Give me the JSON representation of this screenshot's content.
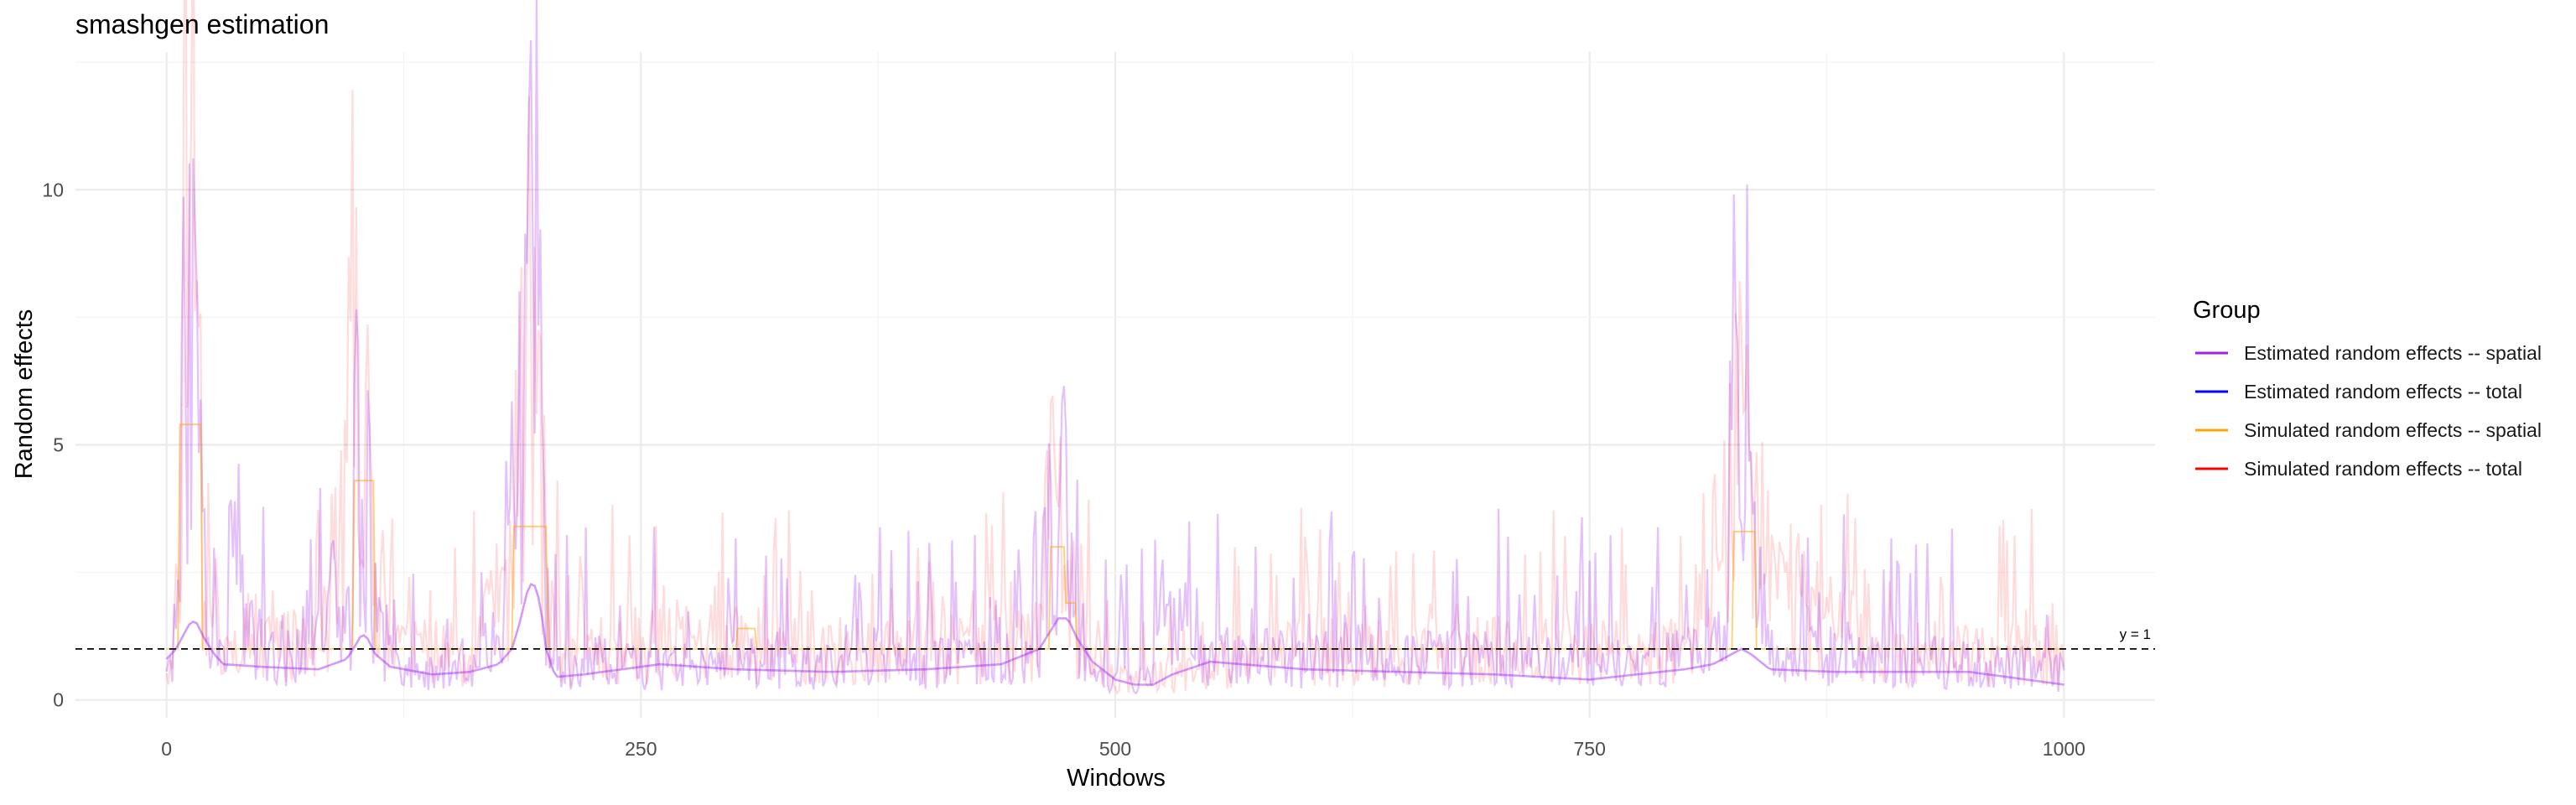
{
  "chart_data": {
    "type": "line",
    "title": "smashgen estimation",
    "xlabel": "Windows",
    "ylabel": "Random effects",
    "xlim": [
      -48,
      1048
    ],
    "ylim": [
      -0.35,
      12.7
    ],
    "x_ticks": [
      0,
      250,
      500,
      750,
      1000
    ],
    "y_ticks": [
      0,
      5,
      10
    ],
    "grid": true,
    "reference_line": {
      "y": 1,
      "label": "y = 1",
      "style": "dashed"
    },
    "legend": {
      "title": "Group",
      "position": "right",
      "entries": [
        {
          "label": "Estimated random effects -- spatial",
          "color": "#A020F0"
        },
        {
          "label": "Estimated random effects -- total",
          "color": "#0000FF"
        },
        {
          "label": "Simulated random effects -- spatial",
          "color": "#FFA500"
        },
        {
          "label": "Simulated random effects -- total",
          "color": "#FF0000"
        }
      ]
    },
    "series": [
      {
        "name": "Estimated random effects -- spatial",
        "color": "#A020F0",
        "style": "noisy",
        "x": [
          0,
          5,
          8,
          10,
          12,
          14,
          16,
          18,
          22,
          30,
          35,
          50,
          70,
          85,
          92,
          98,
          100,
          103,
          106,
          110,
          120,
          140,
          160,
          175,
          182,
          186,
          189,
          192,
          195,
          198,
          202,
          210,
          230,
          250,
          300,
          350,
          400,
          440,
          460,
          466,
          470,
          473,
          476,
          480,
          490,
          500,
          510,
          520,
          526,
          540,
          600,
          650,
          700,
          750,
          790,
          815,
          822,
          826,
          830,
          834,
          838,
          845,
          880,
          950,
          1000
        ],
        "y": [
          0.6,
          0.9,
          4.5,
          10.2,
          7.0,
          9.7,
          6.5,
          4.0,
          1.5,
          1.0,
          3.5,
          1.0,
          0.9,
          4.0,
          1.0,
          2.0,
          7.3,
          4.0,
          5.2,
          2.0,
          0.8,
          0.6,
          0.9,
          1.2,
          3.0,
          5.5,
          7.5,
          9.0,
          12.6,
          4.0,
          1.0,
          0.5,
          0.9,
          0.7,
          0.8,
          0.7,
          0.8,
          0.8,
          1.2,
          3.0,
          3.5,
          4.1,
          3.0,
          1.5,
          0.6,
          0.4,
          0.4,
          0.5,
          2.5,
          1.0,
          0.9,
          1.0,
          0.9,
          0.7,
          0.9,
          1.0,
          3.0,
          6.6,
          4.0,
          7.7,
          2.5,
          1.0,
          0.9,
          0.8,
          0.6
        ],
        "smooth_x": [
          0,
          5,
          10,
          13,
          16,
          20,
          25,
          30,
          50,
          80,
          95,
          100,
          103,
          106,
          110,
          118,
          140,
          160,
          175,
          182,
          186,
          190,
          193,
          197,
          200,
          205,
          220,
          260,
          300,
          350,
          400,
          440,
          460,
          470,
          475,
          480,
          488,
          500,
          510,
          520,
          530,
          550,
          600,
          650,
          700,
          750,
          800,
          815,
          825,
          830,
          835,
          845,
          880,
          950,
          1000
        ],
        "smooth_y": [
          0.8,
          1.0,
          1.35,
          1.55,
          1.5,
          1.2,
          0.9,
          0.7,
          0.65,
          0.6,
          0.8,
          1.1,
          1.3,
          1.2,
          0.9,
          0.65,
          0.5,
          0.55,
          0.7,
          1.0,
          1.5,
          2.1,
          2.35,
          1.9,
          1.0,
          0.45,
          0.5,
          0.7,
          0.6,
          0.55,
          0.6,
          0.7,
          1.0,
          1.6,
          1.6,
          1.2,
          0.75,
          0.4,
          0.3,
          0.3,
          0.5,
          0.75,
          0.6,
          0.55,
          0.5,
          0.4,
          0.6,
          0.7,
          0.9,
          1.0,
          0.9,
          0.6,
          0.55,
          0.55,
          0.3
        ]
      },
      {
        "name": "Simulated random effects -- spatial",
        "color": "#FFA500",
        "style": "step",
        "x": [
          0,
          6,
          7,
          18,
          19,
          98,
          99,
          109,
          110,
          182,
          183,
          200,
          201,
          300,
          301,
          310,
          311,
          465,
          466,
          473,
          474,
          479,
          480,
          825,
          826,
          837,
          838,
          1000
        ],
        "y": [
          1,
          1,
          5.4,
          5.4,
          1,
          1,
          4.3,
          4.3,
          1,
          1,
          3.4,
          3.4,
          1,
          1,
          1.4,
          1.4,
          1,
          1,
          3.0,
          3.0,
          1.9,
          1.9,
          1,
          1,
          3.3,
          3.3,
          1,
          1
        ]
      },
      {
        "name": "Simulated random effects -- total",
        "color": "#FF0000",
        "style": "noisy",
        "x": [
          0,
          6,
          9,
          12,
          14,
          17,
          20,
          30,
          50,
          90,
          100,
          103,
          106,
          110,
          120,
          160,
          180,
          186,
          190,
          195,
          200,
          210,
          300,
          320,
          400,
          460,
          468,
          472,
          476,
          480,
          500,
          520,
          600,
          700,
          800,
          822,
          828,
          834,
          840,
          900,
          1000
        ],
        "y": [
          0.9,
          2.0,
          11.8,
          8.0,
          12.3,
          7.0,
          2.0,
          1.0,
          1.0,
          1.5,
          9.5,
          4.0,
          6.1,
          2.0,
          1.0,
          1.0,
          2.0,
          5.0,
          7.5,
          9.0,
          2.5,
          1.0,
          1.3,
          1.0,
          1.0,
          1.3,
          5.0,
          3.5,
          2.5,
          1.5,
          0.5,
          0.5,
          1.0,
          1.0,
          1.0,
          3.5,
          5.0,
          6.5,
          2.5,
          1.0,
          1.0
        ]
      },
      {
        "name": "Estimated random effects -- total",
        "color": "#0000FF",
        "style": "noisy",
        "x": [],
        "y": []
      }
    ]
  }
}
